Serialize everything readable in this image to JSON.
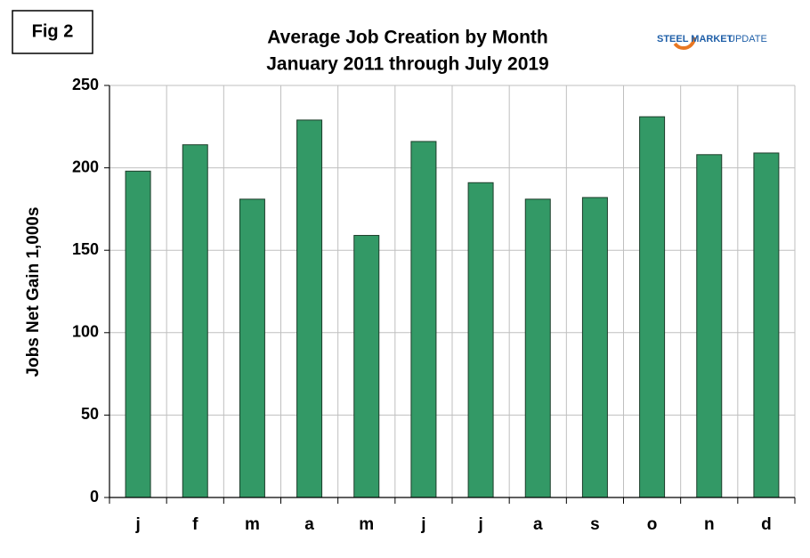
{
  "chart_data": {
    "type": "bar",
    "title": "Average Job Creation by Month",
    "subtitle": "January 2011 through July 2019",
    "annotations": [
      "Fig 2",
      "STEEL MARKET",
      "UPDATE"
    ],
    "y_label": "Jobs Net Gain 1,000s",
    "categories": [
      "j",
      "f",
      "m",
      "a",
      "m",
      "j",
      "j",
      "a",
      "s",
      "o",
      "n",
      "d"
    ],
    "values": [
      198,
      214,
      181,
      229,
      159,
      216,
      191,
      181,
      182,
      231,
      208,
      209
    ],
    "color": "#339966",
    "ylim": [
      0,
      250
    ],
    "yticks": [
      0,
      50,
      100,
      150,
      200,
      250
    ],
    "grid": true
  }
}
